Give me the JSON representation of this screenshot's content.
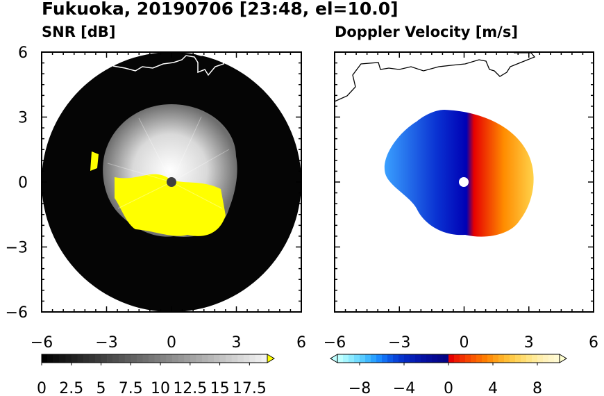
{
  "header": {
    "title": "Fukuoka, 20190706 [23:48, el=10.0]"
  },
  "colors": {
    "snr_low": "#000000",
    "snr_high": "#f2f2f2",
    "snr_over": "#ffff00",
    "vel_neg_end": "#bfffff",
    "vel_neg_mid": "#0000c8",
    "vel_pos_mid": "#e60000",
    "vel_pos_end": "#ffffd0",
    "coastline": "#000000",
    "coastline_on_dark": "#ffffff"
  },
  "chart_data": [
    {
      "type": "heatmap",
      "title": "SNR [dB]",
      "xlim": [
        -6,
        6
      ],
      "ylim": [
        -6,
        6
      ],
      "x_ticks": [
        -6,
        -3,
        0,
        3,
        6
      ],
      "y_ticks": [
        -6,
        -3,
        0,
        3,
        6
      ],
      "x_ticklabels": [
        "−6",
        "−3",
        "0",
        "3",
        "6"
      ],
      "y_ticklabels": [
        "−6",
        "−3",
        "0",
        "3",
        "6"
      ],
      "range_ring_radius": 6,
      "echo_region_radius": 3,
      "colorbar": {
        "min": 0,
        "max": 19,
        "step": 0.5,
        "extend": "max",
        "ticks": [
          0,
          2.5,
          5,
          7.5,
          10,
          12.5,
          15,
          17.5
        ],
        "ticklabels": [
          "0",
          "2.5",
          "5",
          "7.5",
          "10",
          "12.5",
          "15",
          "17.5"
        ]
      }
    },
    {
      "type": "heatmap",
      "title": "Doppler Velocity [m/s]",
      "xlim": [
        -6,
        6
      ],
      "ylim": [
        -6,
        6
      ],
      "x_ticks": [
        -6,
        -3,
        0,
        3,
        6
      ],
      "y_ticks": [
        -6,
        -3,
        0,
        3,
        6
      ],
      "x_ticklabels": [
        "−6",
        "−3",
        "0",
        "3",
        "6"
      ],
      "y_ticklabels": [],
      "echo_region_radius": 3,
      "colorbar": {
        "min": -10,
        "max": 10,
        "step": 0.5,
        "extend": "both",
        "ticks": [
          -8,
          -4,
          0,
          4,
          8
        ],
        "ticklabels": [
          "−8",
          "−4",
          "0",
          "4",
          "8"
        ]
      }
    }
  ]
}
